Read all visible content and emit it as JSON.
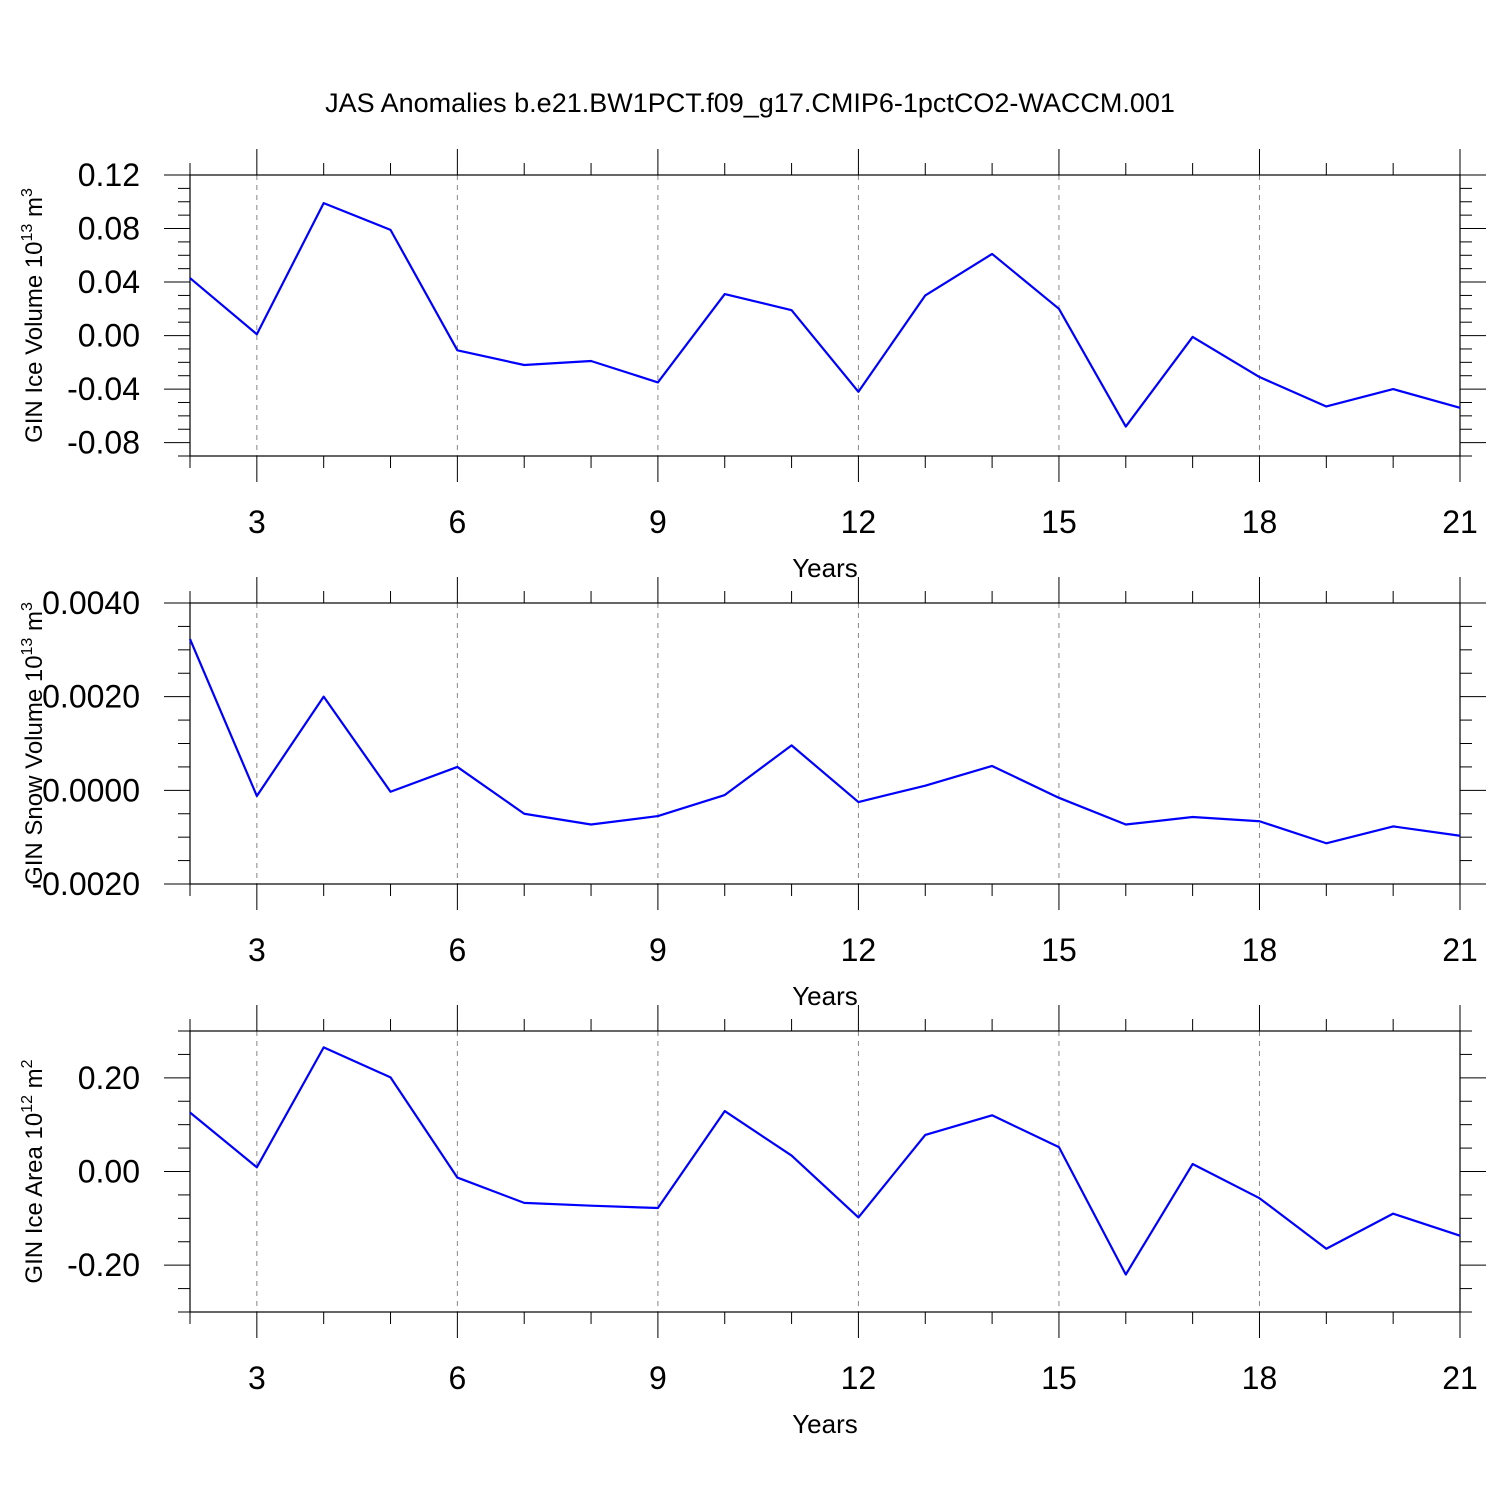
{
  "title": "JAS Anomalies b.e21.BW1PCT.f09_g17.CMIP6-1pctCO2-WACCM.001",
  "chart_data": [
    {
      "type": "line",
      "ylabel": {
        "base": "GIN Ice Volume 10",
        "exp": "13",
        "unit": " m",
        "unit_exp": "3"
      },
      "xlabel": "Years",
      "xlim": [
        2,
        21
      ],
      "ylim": [
        -0.09,
        0.12
      ],
      "xticks": [
        3,
        6,
        9,
        12,
        15,
        18,
        21
      ],
      "yticks": [
        -0.08,
        -0.04,
        0.0,
        0.04,
        0.08,
        0.12
      ],
      "ytick_labels": [
        "-0.08",
        "-0.04",
        "0.00",
        "0.04",
        "0.08",
        "0.12"
      ],
      "grid_x": true,
      "color": "#0000ff",
      "x": [
        2,
        3,
        4,
        5,
        6,
        7,
        8,
        9,
        10,
        11,
        12,
        13,
        14,
        15,
        16,
        17,
        18,
        19,
        20,
        21
      ],
      "y": [
        0.043,
        0.001,
        0.099,
        0.079,
        -0.011,
        -0.022,
        -0.019,
        -0.035,
        0.031,
        0.019,
        -0.042,
        0.03,
        0.061,
        0.02,
        -0.068,
        -0.001,
        -0.031,
        -0.053,
        -0.04,
        -0.054
      ]
    },
    {
      "type": "line",
      "ylabel": {
        "base": "GIN Snow Volume 10",
        "exp": "13",
        "unit": " m",
        "unit_exp": "3"
      },
      "xlabel": "Years",
      "xlim": [
        2,
        21
      ],
      "ylim": [
        -0.002,
        0.004
      ],
      "xticks": [
        3,
        6,
        9,
        12,
        15,
        18,
        21
      ],
      "yticks": [
        -0.002,
        0.0,
        0.002,
        0.004
      ],
      "ytick_labels": [
        "-0.0020",
        "0.0000",
        "0.0020",
        "0.0040"
      ],
      "grid_x": true,
      "color": "#0000ff",
      "x": [
        2,
        3,
        4,
        5,
        6,
        7,
        8,
        9,
        10,
        11,
        12,
        13,
        14,
        15,
        16,
        17,
        18,
        19,
        20,
        21
      ],
      "y": [
        0.00323,
        -0.00012,
        0.002,
        -3e-05,
        0.0005,
        -0.0005,
        -0.00073,
        -0.00055,
        -0.0001,
        0.00096,
        -0.00025,
        0.0001,
        0.00052,
        -0.00016,
        -0.00073,
        -0.00057,
        -0.00066,
        -0.00113,
        -0.00077,
        -0.00097
      ]
    },
    {
      "type": "line",
      "ylabel": {
        "base": "GIN Ice Area 10",
        "exp": "12",
        "unit": " m",
        "unit_exp": "2"
      },
      "xlabel": "Years",
      "xlim": [
        2,
        21
      ],
      "ylim": [
        -0.3,
        0.3
      ],
      "xticks": [
        3,
        6,
        9,
        12,
        15,
        18,
        21
      ],
      "yticks": [
        -0.2,
        0.0,
        0.2
      ],
      "ytick_labels": [
        "-0.20",
        "0.00",
        "0.20"
      ],
      "grid_x": true,
      "color": "#0000ff",
      "x": [
        2,
        3,
        4,
        5,
        6,
        7,
        8,
        9,
        10,
        11,
        12,
        13,
        14,
        15,
        16,
        17,
        18,
        19,
        20,
        21
      ],
      "y": [
        0.126,
        0.009,
        0.265,
        0.201,
        -0.013,
        -0.067,
        -0.073,
        -0.078,
        0.129,
        0.034,
        -0.098,
        0.078,
        0.12,
        0.052,
        -0.22,
        0.016,
        -0.057,
        -0.165,
        -0.09,
        -0.137
      ]
    }
  ]
}
